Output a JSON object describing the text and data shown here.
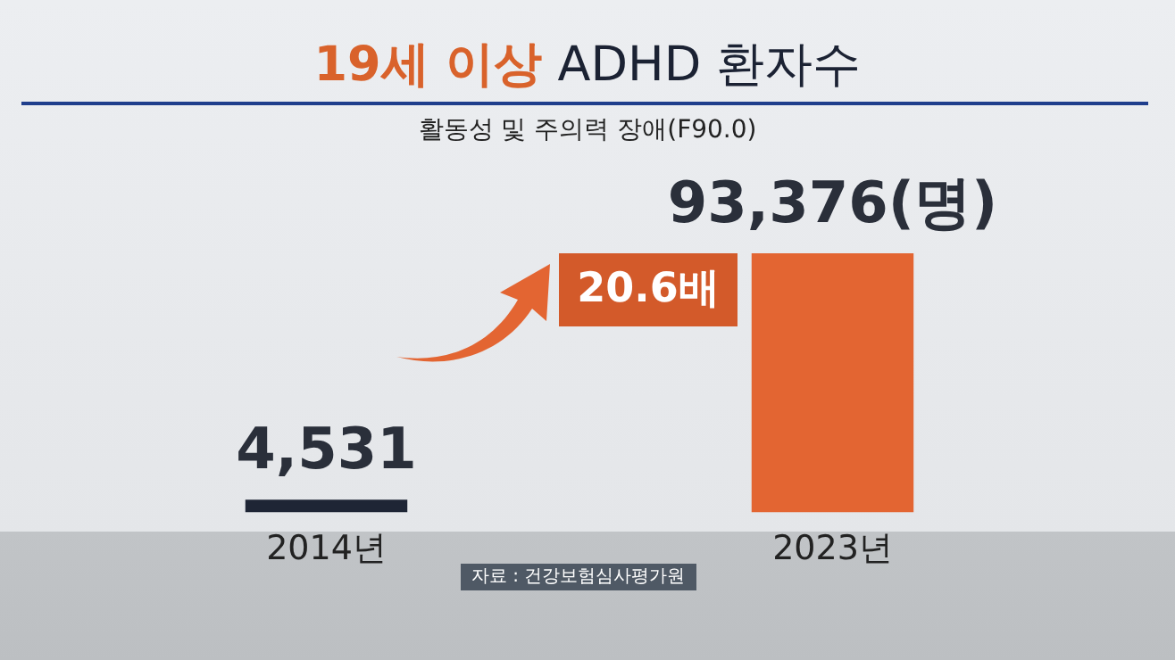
{
  "chart_data": {
    "type": "bar",
    "title": "19세 이상 ADHD 환자수",
    "subtitle": "활동성 및 주의력 장애(F90.0)",
    "categories": [
      "2014년",
      "2023년"
    ],
    "values": [
      4531,
      93376
    ],
    "colors": [
      "#1e2535",
      "#e36532"
    ],
    "value_labels": [
      "4,531",
      "93,376(명)"
    ],
    "annotations": [
      "20.6배",
      "자료 : 건강보험심사평가원"
    ],
    "grid": false,
    "legend": false
  }
}
